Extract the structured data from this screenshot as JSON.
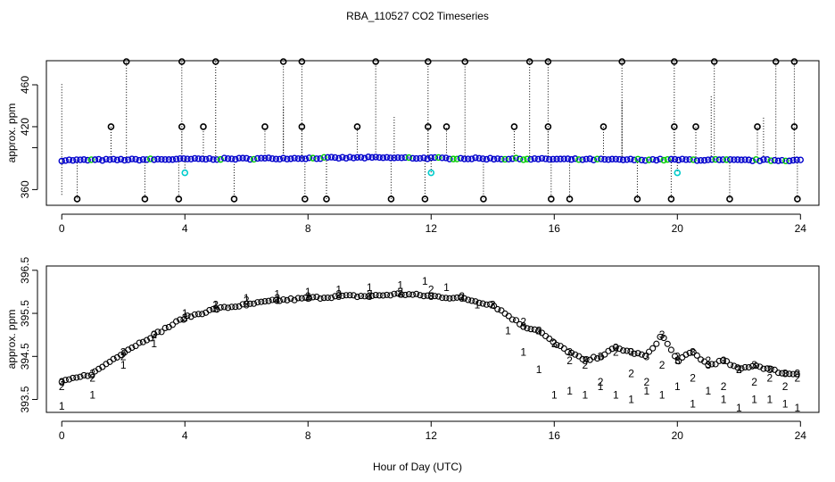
{
  "chart_data": {
    "title": "RBA_110527  CO2 Timeseries",
    "xlabel": "Hour of Day (UTC)",
    "colors": {
      "series1": "#ff0000",
      "series2": "#00cc00",
      "series3": "#0000cc",
      "outline": "#000000",
      "highlight": "#00cccc"
    },
    "panels": [
      {
        "type": "scatter",
        "ylabel": "approx. ppm",
        "xlim": [
          -0.5,
          24.6
        ],
        "ylim": [
          345,
          483
        ],
        "x_ticks": [
          0,
          4,
          8,
          12,
          16,
          20,
          24
        ],
        "y_ticks": [
          360,
          420,
          460
        ],
        "y_tick_labels": [
          "360",
          "420",
          "460"
        ],
        "extra_y_tick": 400,
        "baseline": [
          [
            0,
            388
          ],
          [
            2,
            388.5
          ],
          [
            4,
            389
          ],
          [
            6,
            389.5
          ],
          [
            8,
            390
          ],
          [
            10,
            390.5
          ],
          [
            12,
            390
          ],
          [
            14,
            389.5
          ],
          [
            16,
            389
          ],
          [
            18,
            388.5
          ],
          [
            20,
            388.5
          ],
          [
            22,
            388
          ],
          [
            24,
            388
          ]
        ],
        "spikes_high": [
          2.1,
          3.9,
          5.0,
          7.2,
          7.8,
          10.2,
          11.9,
          13.1,
          15.2,
          15.8,
          18.2,
          19.9,
          21.2,
          23.2,
          23.8
        ],
        "spikes_420": [
          1.6,
          3.9,
          4.6,
          6.6,
          7.8,
          9.6,
          11.9,
          12.5,
          14.7,
          15.8,
          17.6,
          19.9,
          20.6,
          22.6,
          23.8
        ],
        "spikes_low": [
          0.5,
          2.7,
          3.8,
          5.6,
          7.9,
          8.6,
          10.7,
          11.8,
          13.7,
          15.9,
          16.5,
          18.7,
          19.8,
          21.7,
          23.9
        ],
        "highlight_points": [
          [
            4.0,
            376
          ],
          [
            12.0,
            376
          ],
          [
            20.0,
            376
          ]
        ],
        "tall_lines": [
          [
            0.0,
            355,
            462
          ],
          [
            7.2,
            392,
            440
          ],
          [
            10.8,
            390,
            430
          ],
          [
            18.2,
            392,
            445
          ],
          [
            21.1,
            392,
            450
          ],
          [
            22.8,
            392,
            430
          ]
        ]
      },
      {
        "type": "scatter",
        "ylabel": "approx. ppm",
        "xlim": [
          -0.5,
          24.6
        ],
        "ylim": [
          393.2,
          396.6
        ],
        "x_ticks": [
          0,
          4,
          8,
          12,
          16,
          20,
          24
        ],
        "y_ticks": [
          393.5,
          394.5,
          395.5,
          396.5
        ],
        "y_tick_labels": [
          "393.5",
          "394.5",
          "395.5",
          "396.5"
        ],
        "series": [
          {
            "name": "1",
            "marker": "1",
            "points": [
              [
                0.0,
                393.35
              ],
              [
                1.0,
                393.6
              ],
              [
                2.0,
                394.3
              ],
              [
                3.0,
                394.8
              ],
              [
                4.0,
                395.5
              ],
              [
                5.0,
                395.7
              ],
              [
                6.0,
                395.85
              ],
              [
                7.0,
                395.95
              ],
              [
                8.0,
                396.0
              ],
              [
                9.0,
                396.05
              ],
              [
                10.0,
                396.1
              ],
              [
                11.0,
                396.15
              ],
              [
                11.8,
                396.25
              ],
              [
                12.5,
                396.1
              ],
              [
                13.5,
                395.7
              ],
              [
                14.5,
                395.1
              ],
              [
                15.0,
                394.6
              ],
              [
                15.5,
                394.2
              ],
              [
                16.0,
                393.6
              ],
              [
                16.5,
                393.7
              ],
              [
                17.0,
                393.6
              ],
              [
                17.5,
                393.8
              ],
              [
                18.0,
                393.6
              ],
              [
                18.5,
                393.5
              ],
              [
                19.0,
                393.7
              ],
              [
                19.5,
                393.6
              ],
              [
                20.0,
                393.8
              ],
              [
                20.5,
                393.4
              ],
              [
                21.0,
                393.7
              ],
              [
                21.5,
                393.5
              ],
              [
                22.0,
                393.3
              ],
              [
                22.5,
                393.5
              ],
              [
                23.0,
                393.5
              ],
              [
                23.5,
                393.4
              ],
              [
                23.9,
                393.3
              ]
            ]
          },
          {
            "name": "2",
            "marker": "2",
            "points": [
              [
                0.0,
                393.8
              ],
              [
                1.0,
                394.0
              ],
              [
                2.0,
                394.5
              ],
              [
                3.0,
                395.0
              ],
              [
                4.0,
                395.4
              ],
              [
                5.0,
                395.7
              ],
              [
                6.0,
                395.8
              ],
              [
                7.0,
                395.85
              ],
              [
                8.0,
                395.9
              ],
              [
                9.0,
                395.95
              ],
              [
                10.0,
                395.95
              ],
              [
                11.0,
                396.0
              ],
              [
                12.0,
                396.05
              ],
              [
                13.0,
                395.9
              ],
              [
                14.0,
                395.7
              ],
              [
                15.0,
                395.3
              ],
              [
                15.5,
                395.1
              ],
              [
                16.0,
                394.8
              ],
              [
                16.5,
                394.4
              ],
              [
                17.0,
                394.3
              ],
              [
                17.5,
                393.9
              ],
              [
                18.0,
                394.6
              ],
              [
                18.5,
                394.1
              ],
              [
                19.0,
                393.9
              ],
              [
                19.5,
                394.3
              ],
              [
                20.0,
                394.5
              ],
              [
                20.5,
                394.0
              ],
              [
                21.0,
                394.4
              ],
              [
                21.5,
                393.8
              ],
              [
                22.0,
                394.2
              ],
              [
                22.5,
                393.9
              ],
              [
                23.0,
                394.0
              ],
              [
                23.5,
                393.8
              ],
              [
                23.9,
                394.0
              ]
            ]
          },
          {
            "name": "3",
            "marker": "3",
            "points": [
              [
                0.0,
                393.9
              ],
              [
                1.0,
                394.1
              ],
              [
                2.0,
                394.6
              ],
              [
                3.0,
                395.0
              ],
              [
                4.0,
                395.4
              ],
              [
                5.0,
                395.6
              ],
              [
                6.0,
                395.7
              ],
              [
                7.0,
                395.8
              ],
              [
                8.0,
                395.85
              ],
              [
                9.0,
                395.9
              ],
              [
                10.0,
                395.9
              ],
              [
                11.0,
                395.95
              ],
              [
                12.0,
                395.9
              ],
              [
                13.0,
                395.85
              ],
              [
                14.0,
                395.7
              ],
              [
                15.0,
                395.2
              ],
              [
                15.5,
                395.1
              ],
              [
                16.0,
                394.8
              ],
              [
                16.5,
                394.6
              ],
              [
                17.0,
                394.4
              ],
              [
                17.5,
                394.5
              ],
              [
                18.0,
                394.7
              ],
              [
                18.5,
                394.6
              ],
              [
                19.0,
                394.5
              ],
              [
                19.5,
                395.0
              ],
              [
                20.0,
                394.4
              ],
              [
                20.5,
                394.6
              ],
              [
                21.0,
                394.3
              ],
              [
                21.5,
                394.4
              ],
              [
                22.0,
                394.2
              ],
              [
                22.5,
                394.3
              ],
              [
                23.0,
                394.2
              ],
              [
                23.5,
                394.1
              ],
              [
                23.9,
                394.1
              ]
            ]
          }
        ]
      }
    ]
  }
}
